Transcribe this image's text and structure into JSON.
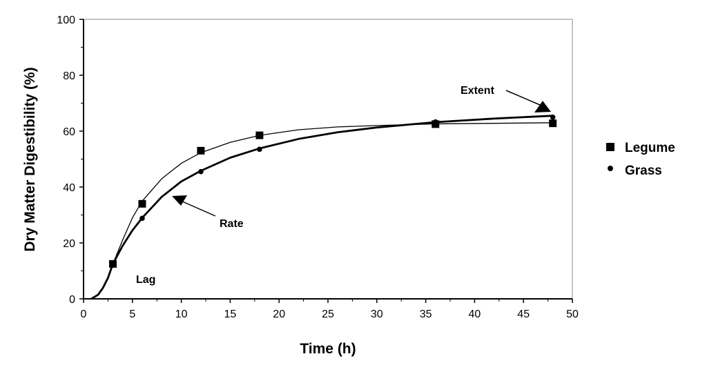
{
  "chart_data": {
    "type": "line",
    "xlabel": "Time (h)",
    "ylabel": "Dry Matter Digestibility (%)",
    "xlim": [
      0,
      50
    ],
    "ylim": [
      0,
      100
    ],
    "xticks": [
      0,
      5,
      10,
      15,
      20,
      25,
      30,
      35,
      40,
      45,
      50
    ],
    "yticks": [
      0,
      20,
      40,
      60,
      80,
      100
    ],
    "grid": false,
    "legend_position": "right",
    "series": [
      {
        "name": "Legume",
        "marker": "square",
        "points": [
          [
            3,
            12.5
          ],
          [
            6,
            34
          ],
          [
            12,
            53
          ],
          [
            18,
            58.5
          ],
          [
            36,
            62.5
          ],
          [
            48,
            62.8
          ]
        ],
        "curve": [
          [
            0.8,
            0
          ],
          [
            1.5,
            1.5
          ],
          [
            2,
            4
          ],
          [
            2.5,
            7.5
          ],
          [
            3,
            12.5
          ],
          [
            4,
            21
          ],
          [
            5,
            29
          ],
          [
            6,
            35
          ],
          [
            8,
            43
          ],
          [
            10,
            48.5
          ],
          [
            12,
            52.3
          ],
          [
            15,
            56
          ],
          [
            18,
            58.5
          ],
          [
            22,
            60.5
          ],
          [
            26,
            61.5
          ],
          [
            30,
            62
          ],
          [
            36,
            62.6
          ],
          [
            42,
            62.8
          ],
          [
            48,
            63
          ]
        ]
      },
      {
        "name": "Grass",
        "marker": "circle",
        "points": [
          [
            3,
            12.5
          ],
          [
            6,
            28.8
          ],
          [
            12,
            45.5
          ],
          [
            18,
            53.5
          ],
          [
            36,
            63.3
          ],
          [
            48,
            65
          ]
        ],
        "curve": [
          [
            0.8,
            0
          ],
          [
            1.5,
            1.5
          ],
          [
            2,
            4
          ],
          [
            2.5,
            7.5
          ],
          [
            3,
            12.5
          ],
          [
            4,
            19
          ],
          [
            5,
            24.5
          ],
          [
            6,
            29
          ],
          [
            8,
            36.5
          ],
          [
            10,
            42
          ],
          [
            12,
            45.8
          ],
          [
            15,
            50.5
          ],
          [
            18,
            53.8
          ],
          [
            22,
            57.2
          ],
          [
            26,
            59.6
          ],
          [
            30,
            61.3
          ],
          [
            36,
            63.2
          ],
          [
            42,
            64.5
          ],
          [
            48,
            65.5
          ]
        ]
      }
    ],
    "annotations": [
      {
        "text": "Lag",
        "x": 6,
        "y": 6.5
      },
      {
        "text": "Rate",
        "x": 14,
        "y": 26.5
      },
      {
        "text": "Extent",
        "x": 39,
        "y": 74
      }
    ]
  }
}
